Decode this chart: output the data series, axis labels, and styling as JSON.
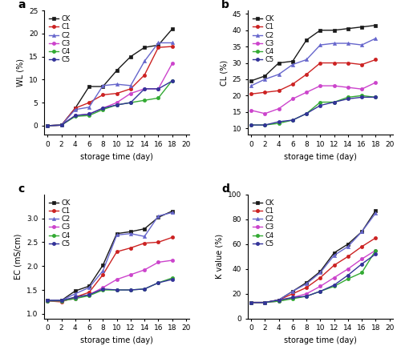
{
  "x": [
    0,
    2,
    4,
    6,
    8,
    10,
    12,
    14,
    16,
    18
  ],
  "WL": {
    "CK": [
      0.0,
      0.1,
      3.8,
      8.5,
      8.5,
      12.0,
      15.0,
      17.0,
      17.5,
      21.0
    ],
    "C1": [
      0.0,
      0.1,
      3.8,
      5.0,
      6.7,
      7.0,
      8.0,
      11.0,
      17.0,
      17.2
    ],
    "C2": [
      0.0,
      0.1,
      3.5,
      4.0,
      8.7,
      9.0,
      8.7,
      14.0,
      18.0,
      18.0
    ],
    "C3": [
      0.0,
      0.1,
      2.2,
      2.5,
      3.8,
      5.0,
      7.0,
      8.0,
      8.0,
      13.5
    ],
    "C4": [
      0.0,
      0.1,
      2.0,
      2.2,
      3.5,
      4.5,
      5.0,
      5.5,
      6.0,
      9.8
    ],
    "C5": [
      0.0,
      0.1,
      2.2,
      2.5,
      3.8,
      4.5,
      5.0,
      8.0,
      8.0,
      9.7
    ]
  },
  "CL": {
    "CK": [
      24.5,
      26.0,
      30.0,
      30.5,
      37.0,
      40.0,
      40.0,
      40.5,
      41.0,
      41.5
    ],
    "C1": [
      20.5,
      21.0,
      21.5,
      23.5,
      26.5,
      30.0,
      30.0,
      30.0,
      29.5,
      31.0
    ],
    "C2": [
      23.0,
      25.0,
      26.5,
      29.5,
      31.0,
      35.5,
      36.0,
      36.0,
      35.5,
      37.5
    ],
    "C3": [
      15.5,
      14.5,
      16.0,
      19.0,
      21.0,
      23.0,
      23.0,
      22.5,
      22.0,
      24.0
    ],
    "C4": [
      11.0,
      11.0,
      11.5,
      12.5,
      14.5,
      18.0,
      18.0,
      19.5,
      20.0,
      19.5
    ],
    "C5": [
      11.0,
      11.0,
      12.0,
      12.5,
      14.5,
      17.0,
      18.0,
      19.0,
      19.5,
      19.5
    ]
  },
  "EC": {
    "CK": [
      1.28,
      1.28,
      1.48,
      1.58,
      2.02,
      2.68,
      2.72,
      2.78,
      3.02,
      3.15
    ],
    "C1": [
      1.27,
      1.25,
      1.35,
      1.45,
      1.82,
      2.3,
      2.38,
      2.48,
      2.5,
      2.6
    ],
    "C2": [
      1.28,
      1.28,
      1.42,
      1.55,
      1.9,
      2.65,
      2.68,
      2.62,
      3.05,
      3.12
    ],
    "C3": [
      1.27,
      1.27,
      1.32,
      1.4,
      1.55,
      1.72,
      1.82,
      1.92,
      2.08,
      2.12
    ],
    "C4": [
      1.27,
      1.27,
      1.32,
      1.38,
      1.5,
      1.5,
      1.5,
      1.52,
      1.65,
      1.75
    ],
    "C5": [
      1.28,
      1.28,
      1.35,
      1.4,
      1.52,
      1.5,
      1.5,
      1.52,
      1.65,
      1.72
    ]
  },
  "KV": {
    "CK": [
      13.0,
      13.0,
      15.0,
      22.0,
      29.0,
      38.0,
      53.0,
      60.0,
      70.0,
      87.0
    ],
    "C1": [
      13.0,
      13.0,
      15.0,
      20.0,
      25.0,
      33.0,
      43.0,
      50.0,
      58.0,
      65.0
    ],
    "C2": [
      13.0,
      13.0,
      15.0,
      22.0,
      28.0,
      37.0,
      51.0,
      58.0,
      70.0,
      85.0
    ],
    "C3": [
      13.0,
      13.0,
      14.0,
      17.0,
      20.0,
      26.0,
      33.0,
      40.0,
      48.0,
      55.0
    ],
    "C4": [
      13.0,
      13.0,
      14.0,
      16.0,
      18.0,
      22.0,
      26.0,
      32.0,
      37.0,
      55.0
    ],
    "C5": [
      13.0,
      13.0,
      15.0,
      17.0,
      18.0,
      22.0,
      27.0,
      35.0,
      44.0,
      52.0
    ]
  },
  "colors": {
    "CK": "#1a1a1a",
    "C1": "#cc2222",
    "C2": "#6666cc",
    "C3": "#cc44cc",
    "C4": "#33aa33",
    "C5": "#333399"
  },
  "markers": {
    "CK": "s",
    "C1": "o",
    "C2": "^",
    "C3": "o",
    "C4": "o",
    "C5": "o"
  }
}
